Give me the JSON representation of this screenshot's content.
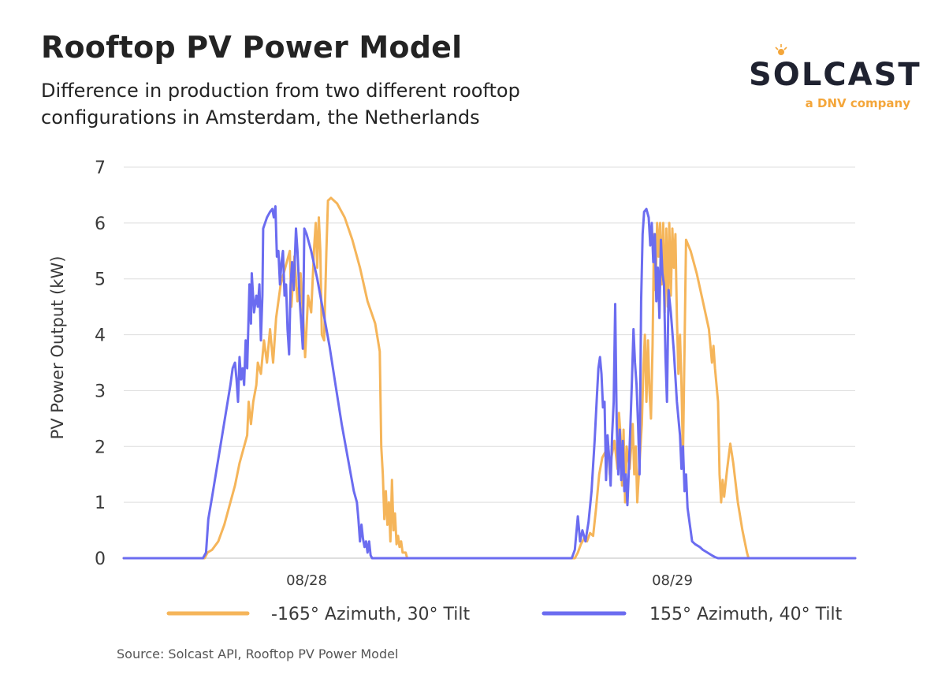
{
  "header": {
    "title": "Rooftop PV Power Model",
    "subtitle": "Difference in production from two different rooftop configurations in Amsterdam, the Netherlands"
  },
  "logo": {
    "word": "SOLCAST",
    "tagline": "a DNV company",
    "brand_color": "#1f2230",
    "accent_color": "#f4a63a"
  },
  "footer": {
    "source": "Source: Solcast API, Rooftop PV Power Model"
  },
  "chart_data": {
    "type": "line",
    "title": "Rooftop PV Power Model",
    "subtitle": "Difference in production from two different rooftop configurations in Amsterdam, the Netherlands",
    "xlabel": "",
    "ylabel": "PV Power Output (kW)",
    "ylim": [
      0,
      7
    ],
    "yticks": [
      0,
      1,
      2,
      3,
      4,
      5,
      6,
      7
    ],
    "xlim": [
      0,
      48
    ],
    "x_units": "hours from 08/28 00:00",
    "xticks": [
      {
        "x": 12,
        "label": "08/28"
      },
      {
        "x": 36,
        "label": "08/29"
      }
    ],
    "grid": true,
    "legend_position": "bottom",
    "series": [
      {
        "name": "-165° Azimuth, 30° Tilt",
        "color": "#f5b55a",
        "points": [
          [
            0,
            0
          ],
          [
            5.3,
            0
          ],
          [
            5.5,
            0.1
          ],
          [
            5.8,
            0.15
          ],
          [
            6.2,
            0.3
          ],
          [
            6.6,
            0.6
          ],
          [
            7.0,
            1.0
          ],
          [
            7.3,
            1.3
          ],
          [
            7.6,
            1.7
          ],
          [
            7.9,
            2.0
          ],
          [
            8.1,
            2.2
          ],
          [
            8.2,
            2.8
          ],
          [
            8.35,
            2.4
          ],
          [
            8.5,
            2.8
          ],
          [
            8.7,
            3.1
          ],
          [
            8.8,
            3.5
          ],
          [
            9.0,
            3.3
          ],
          [
            9.2,
            3.9
          ],
          [
            9.4,
            3.5
          ],
          [
            9.6,
            4.1
          ],
          [
            9.8,
            3.5
          ],
          [
            10.0,
            4.3
          ],
          [
            10.3,
            4.9
          ],
          [
            10.6,
            5.2
          ],
          [
            10.9,
            5.5
          ],
          [
            11.0,
            4.5
          ],
          [
            11.2,
            5.4
          ],
          [
            11.4,
            4.6
          ],
          [
            11.6,
            5.1
          ],
          [
            11.8,
            4.2
          ],
          [
            11.9,
            3.6
          ],
          [
            12.1,
            4.7
          ],
          [
            12.3,
            4.4
          ],
          [
            12.5,
            5.6
          ],
          [
            12.6,
            6.0
          ],
          [
            12.7,
            5.2
          ],
          [
            12.8,
            6.1
          ],
          [
            12.9,
            5.5
          ],
          [
            13.0,
            4.0
          ],
          [
            13.15,
            3.9
          ],
          [
            13.3,
            5.5
          ],
          [
            13.4,
            6.4
          ],
          [
            13.6,
            6.45
          ],
          [
            14.0,
            6.35
          ],
          [
            14.5,
            6.1
          ],
          [
            15.0,
            5.7
          ],
          [
            15.5,
            5.2
          ],
          [
            16.0,
            4.6
          ],
          [
            16.5,
            4.2
          ],
          [
            16.8,
            3.7
          ],
          [
            16.9,
            2.0
          ],
          [
            17.0,
            1.5
          ],
          [
            17.1,
            0.7
          ],
          [
            17.2,
            1.2
          ],
          [
            17.3,
            0.6
          ],
          [
            17.4,
            1.0
          ],
          [
            17.5,
            0.3
          ],
          [
            17.6,
            1.4
          ],
          [
            17.7,
            0.5
          ],
          [
            17.8,
            0.8
          ],
          [
            17.9,
            0.25
          ],
          [
            18.0,
            0.4
          ],
          [
            18.1,
            0.2
          ],
          [
            18.2,
            0.3
          ],
          [
            18.3,
            0.1
          ],
          [
            18.5,
            0.1
          ],
          [
            18.6,
            0
          ],
          [
            29.6,
            0
          ],
          [
            29.8,
            0.1
          ],
          [
            30.0,
            0.25
          ],
          [
            30.2,
            0.35
          ],
          [
            30.4,
            0.3
          ],
          [
            30.6,
            0.45
          ],
          [
            30.8,
            0.4
          ],
          [
            31.0,
            0.9
          ],
          [
            31.2,
            1.5
          ],
          [
            31.4,
            1.8
          ],
          [
            31.6,
            1.9
          ],
          [
            31.8,
            2.0
          ],
          [
            31.9,
            1.5
          ],
          [
            32.0,
            1.8
          ],
          [
            32.2,
            2.1
          ],
          [
            32.4,
            1.6
          ],
          [
            32.5,
            2.6
          ],
          [
            32.6,
            2.2
          ],
          [
            32.7,
            1.3
          ],
          [
            32.8,
            2.3
          ],
          [
            32.9,
            1.0
          ],
          [
            33.0,
            2.0
          ],
          [
            33.2,
            1.6
          ],
          [
            33.4,
            2.4
          ],
          [
            33.5,
            1.5
          ],
          [
            33.6,
            2.0
          ],
          [
            33.7,
            1.0
          ],
          [
            33.8,
            1.5
          ],
          [
            34.0,
            2.4
          ],
          [
            34.1,
            3.4
          ],
          [
            34.2,
            4.0
          ],
          [
            34.3,
            2.8
          ],
          [
            34.4,
            3.9
          ],
          [
            34.5,
            3.0
          ],
          [
            34.6,
            2.5
          ],
          [
            34.7,
            3.8
          ],
          [
            34.8,
            5.8
          ],
          [
            34.9,
            4.8
          ],
          [
            35.0,
            6.0
          ],
          [
            35.1,
            5.4
          ],
          [
            35.2,
            6.0
          ],
          [
            35.3,
            4.9
          ],
          [
            35.4,
            6.0
          ],
          [
            35.5,
            4.4
          ],
          [
            35.6,
            5.9
          ],
          [
            35.7,
            4.5
          ],
          [
            35.8,
            6.0
          ],
          [
            35.9,
            4.7
          ],
          [
            36.0,
            5.9
          ],
          [
            36.1,
            5.2
          ],
          [
            36.2,
            5.8
          ],
          [
            36.3,
            4.3
          ],
          [
            36.4,
            3.3
          ],
          [
            36.5,
            4.0
          ],
          [
            36.6,
            3.1
          ],
          [
            36.7,
            1.8
          ],
          [
            36.9,
            5.7
          ],
          [
            37.2,
            5.5
          ],
          [
            37.6,
            5.1
          ],
          [
            38.0,
            4.6
          ],
          [
            38.4,
            4.1
          ],
          [
            38.6,
            3.5
          ],
          [
            38.7,
            3.8
          ],
          [
            38.8,
            3.4
          ],
          [
            39.0,
            2.8
          ],
          [
            39.1,
            1.5
          ],
          [
            39.2,
            1.0
          ],
          [
            39.3,
            1.4
          ],
          [
            39.4,
            1.1
          ],
          [
            39.6,
            1.6
          ],
          [
            39.8,
            2.05
          ],
          [
            40.0,
            1.7
          ],
          [
            40.3,
            1.0
          ],
          [
            40.6,
            0.5
          ],
          [
            40.9,
            0.1
          ],
          [
            41.0,
            0
          ],
          [
            48.0,
            0
          ]
        ]
      },
      {
        "name": "155° Azimuth, 40° Tilt",
        "color": "#6b6cf0",
        "points": [
          [
            0,
            0
          ],
          [
            5.2,
            0
          ],
          [
            5.4,
            0.1
          ],
          [
            5.55,
            0.7
          ],
          [
            5.8,
            1.1
          ],
          [
            6.1,
            1.6
          ],
          [
            6.4,
            2.1
          ],
          [
            6.7,
            2.6
          ],
          [
            7.0,
            3.1
          ],
          [
            7.15,
            3.4
          ],
          [
            7.3,
            3.5
          ],
          [
            7.4,
            3.2
          ],
          [
            7.5,
            2.8
          ],
          [
            7.6,
            3.6
          ],
          [
            7.7,
            3.2
          ],
          [
            7.8,
            3.4
          ],
          [
            7.9,
            3.1
          ],
          [
            8.0,
            3.9
          ],
          [
            8.1,
            3.4
          ],
          [
            8.25,
            4.9
          ],
          [
            8.35,
            4.2
          ],
          [
            8.4,
            5.1
          ],
          [
            8.55,
            4.4
          ],
          [
            8.7,
            4.7
          ],
          [
            8.8,
            4.5
          ],
          [
            8.9,
            4.9
          ],
          [
            9.0,
            3.9
          ],
          [
            9.1,
            4.7
          ],
          [
            9.15,
            5.9
          ],
          [
            9.4,
            6.1
          ],
          [
            9.6,
            6.2
          ],
          [
            9.75,
            6.25
          ],
          [
            9.85,
            6.1
          ],
          [
            9.95,
            6.3
          ],
          [
            10.05,
            5.4
          ],
          [
            10.15,
            5.5
          ],
          [
            10.25,
            4.9
          ],
          [
            10.35,
            5.3
          ],
          [
            10.45,
            5.5
          ],
          [
            10.55,
            4.7
          ],
          [
            10.65,
            4.9
          ],
          [
            10.75,
            4.1
          ],
          [
            10.85,
            3.65
          ],
          [
            10.95,
            4.9
          ],
          [
            11.05,
            5.3
          ],
          [
            11.15,
            4.8
          ],
          [
            11.3,
            5.9
          ],
          [
            11.4,
            5.5
          ],
          [
            11.55,
            4.6
          ],
          [
            11.65,
            4.2
          ],
          [
            11.75,
            3.75
          ],
          [
            11.85,
            5.9
          ],
          [
            12.0,
            5.8
          ],
          [
            12.3,
            5.5
          ],
          [
            12.7,
            5.0
          ],
          [
            13.1,
            4.4
          ],
          [
            13.5,
            3.8
          ],
          [
            13.9,
            3.1
          ],
          [
            14.3,
            2.4
          ],
          [
            14.7,
            1.8
          ],
          [
            15.1,
            1.2
          ],
          [
            15.3,
            1.0
          ],
          [
            15.4,
            0.7
          ],
          [
            15.5,
            0.3
          ],
          [
            15.6,
            0.6
          ],
          [
            15.7,
            0.35
          ],
          [
            15.8,
            0.2
          ],
          [
            15.9,
            0.3
          ],
          [
            16.0,
            0.1
          ],
          [
            16.1,
            0.3
          ],
          [
            16.2,
            0.05
          ],
          [
            16.3,
            0
          ],
          [
            29.4,
            0
          ],
          [
            29.6,
            0.15
          ],
          [
            29.8,
            0.75
          ],
          [
            29.95,
            0.3
          ],
          [
            30.1,
            0.5
          ],
          [
            30.3,
            0.3
          ],
          [
            30.5,
            0.65
          ],
          [
            30.7,
            1.2
          ],
          [
            30.9,
            2.1
          ],
          [
            31.05,
            2.9
          ],
          [
            31.15,
            3.4
          ],
          [
            31.25,
            3.6
          ],
          [
            31.35,
            3.3
          ],
          [
            31.45,
            2.7
          ],
          [
            31.55,
            2.8
          ],
          [
            31.65,
            1.4
          ],
          [
            31.75,
            2.2
          ],
          [
            31.85,
            1.8
          ],
          [
            31.95,
            1.3
          ],
          [
            32.05,
            2.2
          ],
          [
            32.15,
            2.8
          ],
          [
            32.25,
            4.55
          ],
          [
            32.35,
            2.4
          ],
          [
            32.45,
            1.5
          ],
          [
            32.55,
            2.3
          ],
          [
            32.65,
            1.4
          ],
          [
            32.75,
            2.1
          ],
          [
            32.85,
            1.2
          ],
          [
            32.95,
            1.5
          ],
          [
            33.05,
            0.95
          ],
          [
            33.15,
            1.6
          ],
          [
            33.35,
            3.2
          ],
          [
            33.45,
            4.1
          ],
          [
            33.55,
            3.5
          ],
          [
            33.65,
            3.1
          ],
          [
            33.75,
            2.4
          ],
          [
            33.85,
            1.5
          ],
          [
            33.95,
            4.6
          ],
          [
            34.05,
            5.8
          ],
          [
            34.15,
            6.2
          ],
          [
            34.3,
            6.25
          ],
          [
            34.45,
            6.1
          ],
          [
            34.55,
            5.6
          ],
          [
            34.65,
            6.0
          ],
          [
            34.75,
            5.3
          ],
          [
            34.85,
            5.8
          ],
          [
            34.95,
            4.6
          ],
          [
            35.05,
            5.2
          ],
          [
            35.15,
            4.3
          ],
          [
            35.25,
            5.7
          ],
          [
            35.35,
            5.1
          ],
          [
            35.45,
            4.9
          ],
          [
            35.55,
            3.6
          ],
          [
            35.65,
            2.8
          ],
          [
            35.75,
            4.8
          ],
          [
            35.9,
            4.4
          ],
          [
            36.1,
            3.7
          ],
          [
            36.3,
            2.8
          ],
          [
            36.5,
            2.2
          ],
          [
            36.6,
            1.6
          ],
          [
            36.7,
            2.0
          ],
          [
            36.8,
            1.2
          ],
          [
            36.9,
            1.5
          ],
          [
            37.0,
            0.9
          ],
          [
            37.15,
            0.6
          ],
          [
            37.3,
            0.3
          ],
          [
            37.5,
            0.25
          ],
          [
            37.8,
            0.2
          ],
          [
            38.0,
            0.15
          ],
          [
            38.3,
            0.1
          ],
          [
            38.6,
            0.05
          ],
          [
            38.8,
            0.02
          ],
          [
            39.0,
            0
          ],
          [
            48.0,
            0
          ]
        ]
      }
    ]
  }
}
